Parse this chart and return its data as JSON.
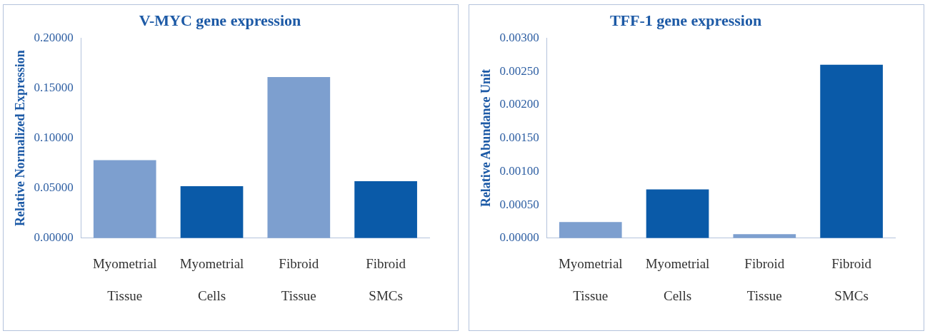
{
  "chart_data": [
    {
      "type": "bar",
      "title": "V-MYC gene expression",
      "ylabel": "Relative Normalized Expression",
      "categories": [
        "Myometrial Tissue",
        "Myometrial Cells",
        "Fibroid Tissue",
        "Fibroid SMCs"
      ],
      "values": [
        0.078,
        0.052,
        0.161,
        0.057
      ],
      "colors": [
        "#7d9fcf",
        "#0a5aa8",
        "#7d9fcf",
        "#0a5aa8"
      ],
      "ylim": [
        0,
        0.2
      ],
      "yticks": [
        {
          "value": 0,
          "label": "0.00000"
        },
        {
          "value": 0.05,
          "label": "0.05000"
        },
        {
          "value": 0.1,
          "label": "0.10000"
        },
        {
          "value": 0.15,
          "label": "0.15000"
        },
        {
          "value": 0.2,
          "label": "0.20000"
        }
      ],
      "grid": false,
      "legend": false
    },
    {
      "type": "bar",
      "title": "TFF-1 gene expression",
      "ylabel": "Relative Abundance Unit",
      "categories": [
        "Myometrial Tissue",
        "Myometrial Cells",
        "Fibroid Tissue",
        "Fibroid SMCs"
      ],
      "values": [
        0.00024,
        0.00073,
        6e-05,
        0.0026
      ],
      "colors": [
        "#7d9fcf",
        "#0a5aa8",
        "#7d9fcf",
        "#0a5aa8"
      ],
      "ylim": [
        0,
        0.003
      ],
      "yticks": [
        {
          "value": 0,
          "label": "0.00000"
        },
        {
          "value": 0.0005,
          "label": "0.00050"
        },
        {
          "value": 0.001,
          "label": "0.00100"
        },
        {
          "value": 0.0015,
          "label": "0.00150"
        },
        {
          "value": 0.002,
          "label": "0.00200"
        },
        {
          "value": 0.0025,
          "label": "0.00250"
        },
        {
          "value": 0.003,
          "label": "0.00300"
        }
      ],
      "grid": false,
      "legend": false
    }
  ]
}
